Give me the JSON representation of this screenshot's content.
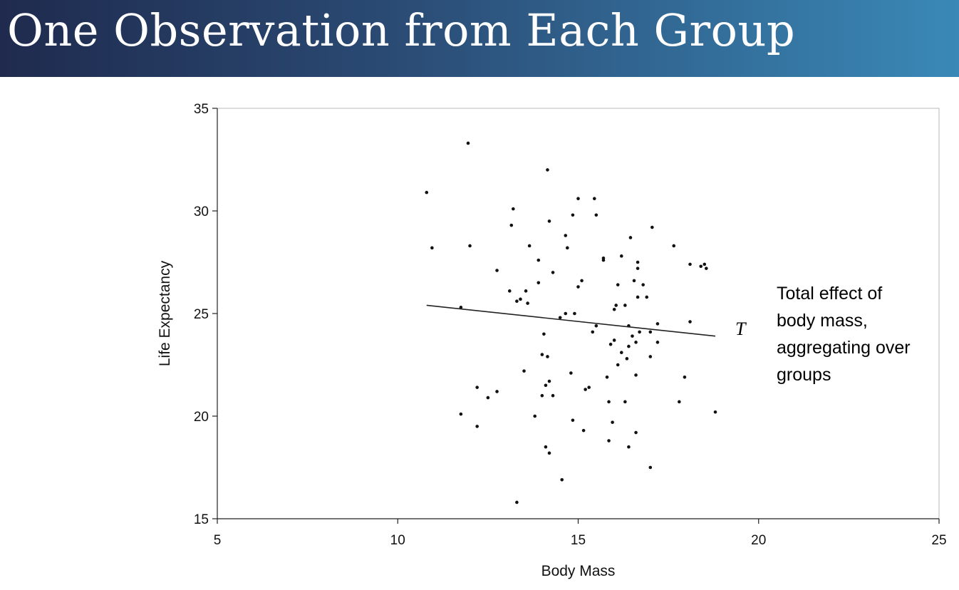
{
  "slide": {
    "title": "One Observation from Each Group"
  },
  "chart_data": {
    "type": "scatter",
    "xlabel": "Body Mass",
    "ylabel": "Life Expectancy",
    "xlim": [
      5,
      25
    ],
    "ylim": [
      15,
      35
    ],
    "x_ticks": [
      5,
      10,
      15,
      20,
      25
    ],
    "y_ticks": [
      15,
      20,
      25,
      30,
      35
    ],
    "grid": false,
    "points": [
      [
        10.8,
        30.9
      ],
      [
        10.95,
        28.2
      ],
      [
        11.75,
        25.3
      ],
      [
        11.75,
        20.1
      ],
      [
        11.95,
        33.3
      ],
      [
        12.0,
        28.3
      ],
      [
        12.2,
        21.4
      ],
      [
        12.2,
        19.5
      ],
      [
        12.5,
        20.9
      ],
      [
        12.75,
        27.1
      ],
      [
        12.75,
        21.2
      ],
      [
        13.1,
        26.1
      ],
      [
        13.15,
        29.3
      ],
      [
        13.2,
        30.1
      ],
      [
        13.3,
        25.6
      ],
      [
        13.3,
        15.8
      ],
      [
        13.4,
        25.7
      ],
      [
        13.5,
        22.2
      ],
      [
        13.55,
        26.1
      ],
      [
        13.6,
        25.5
      ],
      [
        13.65,
        28.3
      ],
      [
        13.8,
        20.0
      ],
      [
        13.9,
        26.5
      ],
      [
        13.9,
        27.6
      ],
      [
        14.0,
        23.0
      ],
      [
        14.0,
        21.0
      ],
      [
        14.05,
        24.0
      ],
      [
        14.1,
        18.5
      ],
      [
        14.1,
        21.5
      ],
      [
        14.15,
        22.9
      ],
      [
        14.15,
        32.0
      ],
      [
        14.2,
        29.5
      ],
      [
        14.2,
        21.7
      ],
      [
        14.2,
        18.2
      ],
      [
        14.3,
        27.0
      ],
      [
        14.3,
        21.0
      ],
      [
        14.5,
        24.8
      ],
      [
        14.55,
        16.9
      ],
      [
        14.65,
        25.0
      ],
      [
        14.65,
        28.8
      ],
      [
        14.7,
        28.2
      ],
      [
        14.8,
        22.1
      ],
      [
        14.85,
        19.8
      ],
      [
        14.85,
        29.8
      ],
      [
        14.9,
        25.0
      ],
      [
        15.0,
        26.3
      ],
      [
        15.0,
        30.6
      ],
      [
        15.1,
        26.6
      ],
      [
        15.15,
        19.3
      ],
      [
        15.2,
        21.3
      ],
      [
        15.3,
        21.4
      ],
      [
        15.4,
        24.1
      ],
      [
        15.45,
        30.6
      ],
      [
        15.5,
        29.8
      ],
      [
        15.5,
        24.4
      ],
      [
        15.7,
        27.6
      ],
      [
        15.7,
        27.7
      ],
      [
        15.8,
        21.9
      ],
      [
        15.85,
        20.7
      ],
      [
        15.85,
        18.8
      ],
      [
        15.9,
        23.5
      ],
      [
        15.95,
        19.7
      ],
      [
        16.0,
        23.7
      ],
      [
        16.0,
        25.2
      ],
      [
        16.05,
        25.4
      ],
      [
        16.1,
        22.5
      ],
      [
        16.1,
        26.4
      ],
      [
        16.2,
        23.1
      ],
      [
        16.2,
        27.8
      ],
      [
        16.3,
        25.4
      ],
      [
        16.3,
        20.7
      ],
      [
        16.35,
        22.8
      ],
      [
        16.4,
        18.5
      ],
      [
        16.4,
        23.4
      ],
      [
        16.4,
        24.4
      ],
      [
        16.45,
        28.7
      ],
      [
        16.5,
        23.9
      ],
      [
        16.55,
        26.6
      ],
      [
        16.6,
        19.2
      ],
      [
        16.6,
        22.0
      ],
      [
        16.6,
        23.6
      ],
      [
        16.65,
        27.2
      ],
      [
        16.65,
        25.8
      ],
      [
        16.65,
        27.5
      ],
      [
        16.7,
        24.1
      ],
      [
        16.8,
        26.4
      ],
      [
        16.9,
        25.8
      ],
      [
        17.0,
        24.1
      ],
      [
        17.0,
        22.9
      ],
      [
        17.0,
        17.5
      ],
      [
        17.05,
        29.2
      ],
      [
        17.2,
        24.5
      ],
      [
        17.2,
        23.6
      ],
      [
        17.65,
        28.3
      ],
      [
        17.8,
        20.7
      ],
      [
        17.95,
        21.9
      ],
      [
        18.1,
        27.4
      ],
      [
        18.1,
        24.6
      ],
      [
        18.4,
        27.3
      ],
      [
        18.5,
        27.4
      ],
      [
        18.55,
        27.2
      ],
      [
        18.8,
        20.2
      ]
    ],
    "fit_line": {
      "x": [
        10.8,
        18.8
      ],
      "y": [
        25.4,
        23.9
      ]
    },
    "annotations": {
      "line_label": "T",
      "text_lines": [
        "Total effect of",
        "body mass,",
        "aggregating over",
        "groups"
      ]
    }
  }
}
